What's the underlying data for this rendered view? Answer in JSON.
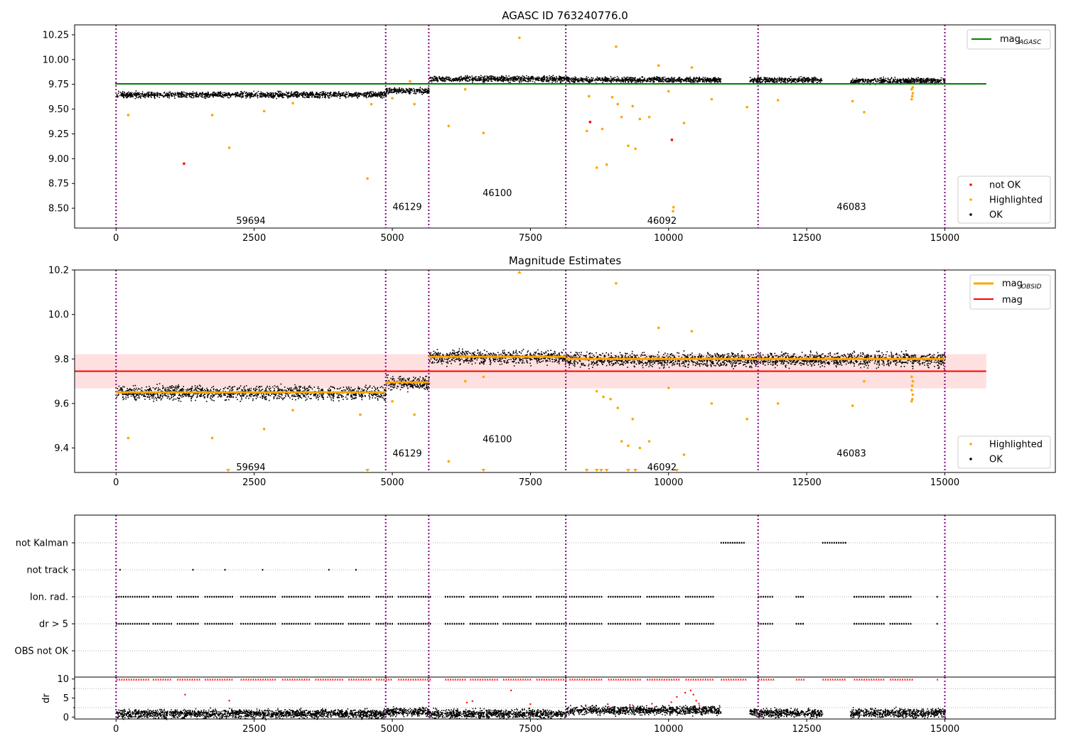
{
  "chart_data": [
    {
      "type": "scatter",
      "title": "AGASC ID 763240776.0",
      "xlabel": "",
      "ylabel": "",
      "xlim": [
        -750,
        17000
      ],
      "ylim": [
        8.3,
        10.35
      ],
      "xticks": [
        0,
        2500,
        5000,
        7500,
        10000,
        12500,
        15000
      ],
      "xtick_labels": [
        "0",
        "2500",
        "5000",
        "7500",
        "10000",
        "12500",
        "15000"
      ],
      "yticks": [
        8.5,
        8.75,
        9.0,
        9.25,
        9.5,
        9.75,
        10.0,
        10.25
      ],
      "ytick_labels": [
        "8.50",
        "8.75",
        "9.00",
        "9.25",
        "9.50",
        "9.75",
        "10.00",
        "10.25"
      ],
      "obs_boundaries": [
        0,
        4880,
        5660,
        8140,
        11620,
        15000
      ],
      "obsid_labels": [
        {
          "text": "59694",
          "x": 2440,
          "y": 8.38
        },
        {
          "text": "46129",
          "x": 5270,
          "y": 8.52
        },
        {
          "text": "46100",
          "x": 6900,
          "y": 8.66
        },
        {
          "text": "46092",
          "x": 9880,
          "y": 8.38
        },
        {
          "text": "46083",
          "x": 13310,
          "y": 8.52
        }
      ],
      "series": [
        {
          "name": "OK",
          "color": "#000000",
          "segments": [
            {
              "x0": 0,
              "x1": 4880,
              "y": 9.65
            },
            {
              "x0": 4880,
              "x1": 5660,
              "y": 9.69
            },
            {
              "x0": 5660,
              "x1": 8140,
              "y": 9.81
            },
            {
              "x0": 8140,
              "x1": 10940,
              "y": 9.8
            },
            {
              "x0": 11460,
              "x1": 12780,
              "y": 9.8
            },
            {
              "x0": 13280,
              "x1": 15000,
              "y": 9.79
            }
          ]
        },
        {
          "name": "Highlighted",
          "color": "#ffa500",
          "points": [
            [
              220,
              9.44
            ],
            [
              1740,
              9.44
            ],
            [
              2050,
              9.11
            ],
            [
              2680,
              9.48
            ],
            [
              3200,
              9.56
            ],
            [
              4550,
              8.8
            ],
            [
              4620,
              9.55
            ],
            [
              5000,
              9.61
            ],
            [
              5400,
              9.55
            ],
            [
              5320,
              9.78
            ],
            [
              6020,
              9.33
            ],
            [
              6320,
              9.7
            ],
            [
              6650,
              9.26
            ],
            [
              7300,
              10.22
            ],
            [
              8520,
              9.28
            ],
            [
              8560,
              9.63
            ],
            [
              8700,
              8.91
            ],
            [
              8800,
              9.3
            ],
            [
              8880,
              8.94
            ],
            [
              8980,
              9.62
            ],
            [
              9050,
              10.13
            ],
            [
              9080,
              9.55
            ],
            [
              9150,
              9.42
            ],
            [
              9270,
              9.13
            ],
            [
              9350,
              9.53
            ],
            [
              9400,
              9.1
            ],
            [
              9480,
              9.4
            ],
            [
              9650,
              9.42
            ],
            [
              9820,
              9.94
            ],
            [
              10000,
              9.68
            ],
            [
              10080,
              8.47
            ],
            [
              10090,
              8.51
            ],
            [
              10280,
              9.36
            ],
            [
              10420,
              9.92
            ],
            [
              10780,
              9.6
            ],
            [
              11420,
              9.52
            ],
            [
              11980,
              9.59
            ],
            [
              13330,
              9.58
            ],
            [
              13540,
              9.47
            ],
            [
              14400,
              9.6
            ],
            [
              14410,
              9.63
            ],
            [
              14420,
              9.66
            ],
            [
              14400,
              9.7
            ],
            [
              14420,
              9.72
            ]
          ]
        },
        {
          "name": "not OK",
          "color": "#ff0000",
          "points": [
            [
              1230,
              8.95
            ],
            [
              8580,
              9.37
            ],
            [
              10060,
              9.19
            ]
          ]
        },
        {
          "name": "mag_{AGASC}",
          "color": "#008000",
          "line_y": 9.755
        }
      ],
      "legend_upper": [
        {
          "label": "mag",
          "sub": "AGASC",
          "color": "#008000",
          "kind": "line"
        }
      ],
      "legend_lower": [
        {
          "label": "not OK",
          "color": "#ff0000",
          "kind": "dot"
        },
        {
          "label": "Highlighted",
          "color": "#ffa500",
          "kind": "dot"
        },
        {
          "label": "OK",
          "color": "#000000",
          "kind": "dot"
        }
      ],
      "legend_placement": "upper right / lower right",
      "grid": false
    },
    {
      "type": "scatter",
      "title": "Magnitude Estimates",
      "xlabel": "",
      "ylabel": "",
      "xlim": [
        -750,
        17000
      ],
      "ylim": [
        9.29,
        10.2
      ],
      "xticks": [
        0,
        2500,
        5000,
        7500,
        10000,
        12500,
        15000
      ],
      "xtick_labels": [
        "0",
        "2500",
        "5000",
        "7500",
        "10000",
        "12500",
        "15000"
      ],
      "yticks": [
        9.4,
        9.6,
        9.8,
        10.0,
        10.2
      ],
      "ytick_labels": [
        "9.4",
        "9.6",
        "9.8",
        "10.0",
        "10.2"
      ],
      "obs_boundaries": [
        0,
        4880,
        5660,
        8140,
        11620,
        15000
      ],
      "obsid_labels": [
        {
          "text": "59694",
          "x": 2440,
          "y": 9.315
        },
        {
          "text": "46129",
          "x": 5270,
          "y": 9.378
        },
        {
          "text": "46100",
          "x": 6900,
          "y": 9.442
        },
        {
          "text": "46092",
          "x": 9880,
          "y": 9.315
        },
        {
          "text": "46083",
          "x": 13310,
          "y": 9.378
        }
      ],
      "mag": 9.745,
      "mag_band": [
        9.668,
        9.822
      ],
      "mag_obsid": [
        {
          "x0": 0,
          "x1": 4880,
          "y": 9.65
        },
        {
          "x0": 4880,
          "x1": 5660,
          "y": 9.695
        },
        {
          "x0": 5660,
          "x1": 8140,
          "y": 9.81
        },
        {
          "x0": 8140,
          "x1": 11620,
          "y": 9.8
        },
        {
          "x0": 11620,
          "x1": 15000,
          "y": 9.8
        }
      ],
      "highlighted_points": [
        [
          220,
          9.445
        ],
        [
          1740,
          9.445
        ],
        [
          2680,
          9.485
        ],
        [
          3200,
          9.57
        ],
        [
          4420,
          9.55
        ],
        [
          5000,
          9.61
        ],
        [
          5400,
          9.55
        ],
        [
          6020,
          9.34
        ],
        [
          6320,
          9.7
        ],
        [
          6650,
          9.72
        ],
        [
          8700,
          9.655
        ],
        [
          8820,
          9.63
        ],
        [
          8950,
          9.62
        ],
        [
          9050,
          10.14
        ],
        [
          9080,
          9.58
        ],
        [
          9150,
          9.43
        ],
        [
          9270,
          9.41
        ],
        [
          9350,
          9.53
        ],
        [
          9480,
          9.4
        ],
        [
          9650,
          9.43
        ],
        [
          9820,
          9.94
        ],
        [
          10000,
          9.67
        ],
        [
          10280,
          9.37
        ],
        [
          10420,
          9.925
        ],
        [
          10780,
          9.6
        ],
        [
          11420,
          9.53
        ],
        [
          11980,
          9.6
        ],
        [
          13330,
          9.59
        ],
        [
          13540,
          9.7
        ],
        [
          14400,
          9.61
        ],
        [
          14410,
          9.62
        ],
        [
          14420,
          9.64
        ],
        [
          14400,
          9.66
        ],
        [
          14410,
          9.68
        ],
        [
          14420,
          9.7
        ],
        [
          14400,
          9.72
        ]
      ],
      "clipped_low_x": [
        2030,
        4550,
        6650,
        8520,
        8700,
        8780,
        8880,
        9270,
        9400,
        10150
      ],
      "clipped_high_x": [
        7300
      ],
      "legend_upper": [
        {
          "label": "mag",
          "sub": "OBSID",
          "color": "#ffa500",
          "kind": "line"
        },
        {
          "label": "mag",
          "sub": "",
          "color": "#ff0000",
          "kind": "line"
        }
      ],
      "legend_lower": [
        {
          "label": "Highlighted",
          "color": "#ffa500",
          "kind": "dot"
        },
        {
          "label": "OK",
          "color": "#000000",
          "kind": "dot"
        }
      ],
      "legend_placement": "upper right / lower right",
      "grid": false
    },
    {
      "type": "scatter",
      "title": "",
      "xlim": [
        -750,
        17000
      ],
      "xticks": [
        0,
        2500,
        5000,
        7500,
        10000,
        12500,
        15000
      ],
      "xtick_labels": [
        "0",
        "2500",
        "5000",
        "7500",
        "10000",
        "12500",
        "15000"
      ],
      "flag_rows": [
        "not Kalman",
        "not track",
        "Ion. rad.",
        "dr > 5",
        "OBS not OK"
      ],
      "flag_intervals": {
        "not Kalman": [
          [
            10940,
            11380
          ],
          [
            12780,
            13200
          ]
        ],
        "not track": [
          [
            60,
            80
          ],
          [
            1380,
            1400
          ],
          [
            1960,
            1970
          ],
          [
            2640,
            2660
          ],
          [
            3840,
            3860
          ],
          [
            4330,
            4340
          ]
        ],
        "Ion. rad.": [
          [
            0,
            600
          ],
          [
            660,
            1000
          ],
          [
            1100,
            1500
          ],
          [
            1600,
            2100
          ],
          [
            2250,
            2900
          ],
          [
            3000,
            3500
          ],
          [
            3600,
            4100
          ],
          [
            4200,
            4600
          ],
          [
            4700,
            5000
          ],
          [
            5100,
            5700
          ],
          [
            5950,
            6300
          ],
          [
            6400,
            6900
          ],
          [
            7000,
            7500
          ],
          [
            7600,
            8140
          ],
          [
            8200,
            8800
          ],
          [
            8900,
            9500
          ],
          [
            9600,
            10200
          ],
          [
            10300,
            10800
          ],
          [
            11620,
            11900
          ],
          [
            12300,
            12450
          ],
          [
            13350,
            13900
          ],
          [
            14000,
            14400
          ],
          [
            14850,
            14870
          ]
        ],
        "dr > 5": [
          [
            0,
            600
          ],
          [
            660,
            1000
          ],
          [
            1100,
            1500
          ],
          [
            1600,
            2100
          ],
          [
            2250,
            2900
          ],
          [
            3000,
            3500
          ],
          [
            3600,
            4100
          ],
          [
            4200,
            4600
          ],
          [
            4700,
            5000
          ],
          [
            5100,
            5700
          ],
          [
            5950,
            6300
          ],
          [
            6400,
            6900
          ],
          [
            7000,
            7500
          ],
          [
            7600,
            8140
          ],
          [
            8200,
            8800
          ],
          [
            8900,
            9500
          ],
          [
            9600,
            10200
          ],
          [
            10300,
            10800
          ],
          [
            11620,
            11900
          ],
          [
            12300,
            12450
          ],
          [
            13350,
            13900
          ],
          [
            14000,
            14400
          ],
          [
            14850,
            14870
          ]
        ],
        "OBS not OK": []
      },
      "dr_ylabel": "dr",
      "dr_yticks": [
        0,
        5,
        10
      ],
      "dr_ytick_labels": [
        "0",
        "5",
        "10"
      ],
      "dr_ylim": [
        -0.5,
        10.5
      ],
      "dr_bands": [
        {
          "x0": 0,
          "x1": 4880,
          "y": 1.0
        },
        {
          "x0": 4880,
          "x1": 5660,
          "y": 1.6
        },
        {
          "x0": 5660,
          "x1": 8140,
          "y": 1.0
        },
        {
          "x0": 8140,
          "x1": 10940,
          "y": 1.9
        },
        {
          "x0": 11460,
          "x1": 12780,
          "y": 1.2
        },
        {
          "x0": 13280,
          "x1": 15000,
          "y": 1.2
        }
      ],
      "dr_red_points": [
        [
          1250,
          5.9
        ],
        [
          2050,
          4.3
        ],
        [
          6350,
          3.8
        ],
        [
          6450,
          4.2
        ],
        [
          7150,
          7.0
        ],
        [
          7500,
          3.4
        ],
        [
          8500,
          3.1
        ],
        [
          8900,
          3.4
        ],
        [
          9300,
          3.2
        ],
        [
          9700,
          3.5
        ],
        [
          10050,
          3.9
        ],
        [
          10150,
          5.3
        ],
        [
          10300,
          6.4
        ],
        [
          10400,
          7.0
        ],
        [
          10450,
          5.9
        ],
        [
          10500,
          4.3
        ],
        [
          10550,
          3.5
        ]
      ],
      "dr_capped_intervals": [
        [
          0,
          600
        ],
        [
          660,
          1000
        ],
        [
          1100,
          1500
        ],
        [
          1600,
          2100
        ],
        [
          2250,
          2900
        ],
        [
          3000,
          3500
        ],
        [
          3600,
          4100
        ],
        [
          4200,
          4600
        ],
        [
          4700,
          5000
        ],
        [
          5100,
          5700
        ],
        [
          5950,
          6300
        ],
        [
          6400,
          6900
        ],
        [
          7000,
          7500
        ],
        [
          7600,
          8140
        ],
        [
          8200,
          8800
        ],
        [
          8900,
          9500
        ],
        [
          9600,
          10200
        ],
        [
          10300,
          10800
        ],
        [
          10940,
          11380
        ],
        [
          11620,
          11900
        ],
        [
          12300,
          12450
        ],
        [
          12780,
          13200
        ],
        [
          13350,
          13900
        ],
        [
          14000,
          14400
        ],
        [
          14850,
          14870
        ]
      ],
      "obs_boundaries": [
        0,
        4880,
        5660,
        8140,
        11620,
        15000
      ],
      "grid": "horizontal dotted on flag rows"
    }
  ]
}
